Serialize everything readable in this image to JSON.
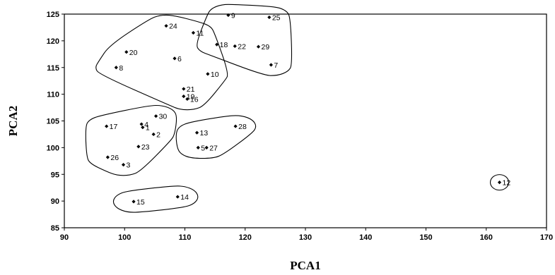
{
  "chart_data": {
    "type": "scatter",
    "xlabel": "PCA1",
    "ylabel": "PCA2",
    "xlim": [
      90,
      170
    ],
    "ylim": [
      85,
      125
    ],
    "x_ticks": [
      90,
      100,
      110,
      120,
      130,
      140,
      150,
      160,
      170
    ],
    "y_ticks": [
      85,
      90,
      95,
      100,
      105,
      110,
      115,
      120,
      125
    ],
    "grid": false,
    "legend": "none",
    "marker_color": "#000000",
    "points": [
      {
        "label": "1",
        "x": 103.0,
        "y": 103.8
      },
      {
        "label": "2",
        "x": 104.8,
        "y": 102.5
      },
      {
        "label": "3",
        "x": 99.8,
        "y": 96.8
      },
      {
        "label": "4",
        "x": 102.8,
        "y": 104.4
      },
      {
        "label": "5",
        "x": 112.2,
        "y": 100.0
      },
      {
        "label": "6",
        "x": 108.3,
        "y": 116.7
      },
      {
        "label": "7",
        "x": 124.3,
        "y": 115.5
      },
      {
        "label": "8",
        "x": 98.6,
        "y": 115.0
      },
      {
        "label": "9",
        "x": 117.2,
        "y": 124.8
      },
      {
        "label": "10",
        "x": 113.8,
        "y": 113.8
      },
      {
        "label": "11",
        "x": 111.4,
        "y": 121.5
      },
      {
        "label": "12",
        "x": 162.2,
        "y": 93.5
      },
      {
        "label": "13",
        "x": 112.0,
        "y": 102.8
      },
      {
        "label": "14",
        "x": 108.8,
        "y": 90.8
      },
      {
        "label": "15",
        "x": 101.5,
        "y": 89.9
      },
      {
        "label": "16",
        "x": 110.4,
        "y": 109.1
      },
      {
        "label": "17",
        "x": 97.0,
        "y": 104.0
      },
      {
        "label": "18",
        "x": 115.3,
        "y": 119.3
      },
      {
        "label": "19",
        "x": 109.8,
        "y": 109.6
      },
      {
        "label": "20",
        "x": 100.3,
        "y": 117.9
      },
      {
        "label": "21",
        "x": 109.8,
        "y": 111.0
      },
      {
        "label": "22",
        "x": 118.3,
        "y": 119.0
      },
      {
        "label": "23",
        "x": 102.3,
        "y": 100.2
      },
      {
        "label": "24",
        "x": 106.9,
        "y": 122.8
      },
      {
        "label": "25",
        "x": 124.0,
        "y": 124.4
      },
      {
        "label": "26",
        "x": 97.2,
        "y": 98.2
      },
      {
        "label": "27",
        "x": 113.6,
        "y": 100.0
      },
      {
        "label": "28",
        "x": 118.4,
        "y": 104.0
      },
      {
        "label": "29",
        "x": 122.2,
        "y": 118.9
      },
      {
        "label": "30",
        "x": 105.2,
        "y": 105.9
      }
    ],
    "clusters": [
      {
        "members": [
          "17",
          "4",
          "1",
          "30",
          "2",
          "23",
          "26",
          "3"
        ]
      },
      {
        "members": [
          "24",
          "11",
          "20",
          "6",
          "8",
          "10",
          "21",
          "19",
          "16"
        ]
      },
      {
        "members": [
          "9",
          "25",
          "18",
          "22",
          "29",
          "7"
        ]
      },
      {
        "members": [
          "13",
          "5",
          "27",
          "28"
        ]
      },
      {
        "members": [
          "15",
          "14"
        ]
      },
      {
        "members": [
          "12"
        ]
      }
    ]
  }
}
